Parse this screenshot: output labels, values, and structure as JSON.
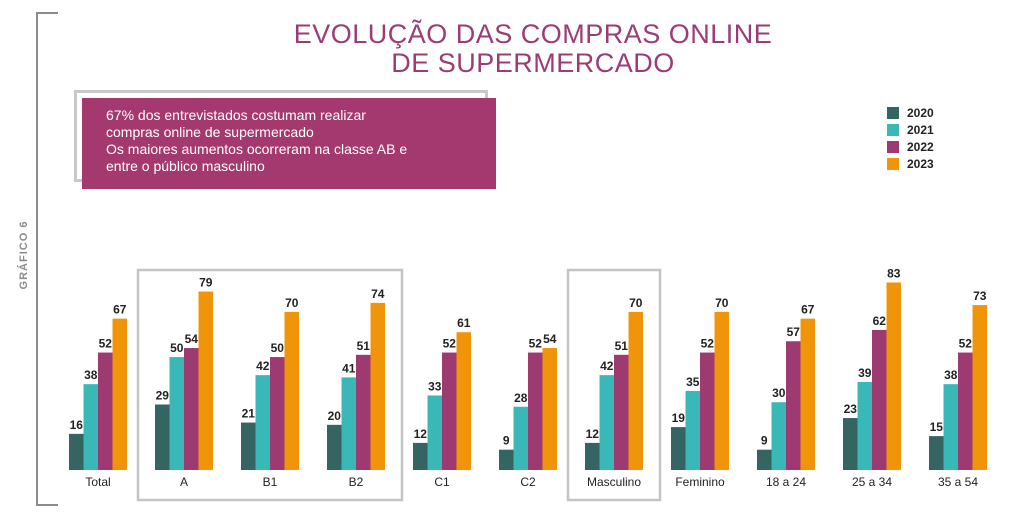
{
  "side_label": "GRÁFICO 6",
  "info_lines": [
    "67% dos entrevistados costumam realizar",
    "compras online de supermercado",
    "Os maiores aumentos ocorreram na classe AB e",
    "entre o público masculino"
  ],
  "chart_data": {
    "type": "bar",
    "title_lines": [
      "EVOLUÇÃO DAS COMPRAS ONLINE",
      "DE SUPERMERCADO"
    ],
    "categories": [
      "Total",
      "A",
      "B1",
      "B2",
      "C1",
      "C2",
      "Masculino",
      "Feminino",
      "18 a 24",
      "25 a 34",
      "35 a 54"
    ],
    "series": [
      {
        "name": "2020",
        "color": "#356563",
        "values": [
          16,
          29,
          21,
          20,
          12,
          9,
          12,
          19,
          9,
          23,
          15
        ]
      },
      {
        "name": "2021",
        "color": "#3ab8b8",
        "values": [
          38,
          50,
          42,
          41,
          33,
          28,
          42,
          35,
          30,
          39,
          38
        ]
      },
      {
        "name": "2022",
        "color": "#9e3a72",
        "values": [
          52,
          54,
          50,
          51,
          52,
          52,
          51,
          52,
          57,
          62,
          52
        ]
      },
      {
        "name": "2023",
        "color": "#f0940a",
        "values": [
          67,
          79,
          70,
          74,
          61,
          54,
          70,
          70,
          67,
          83,
          73
        ]
      }
    ],
    "highlighted_groups": [
      [
        "A",
        "B1",
        "B2"
      ],
      [
        "Masculino"
      ]
    ],
    "ylim": [
      0,
      85
    ],
    "legend_position": "top-right"
  }
}
